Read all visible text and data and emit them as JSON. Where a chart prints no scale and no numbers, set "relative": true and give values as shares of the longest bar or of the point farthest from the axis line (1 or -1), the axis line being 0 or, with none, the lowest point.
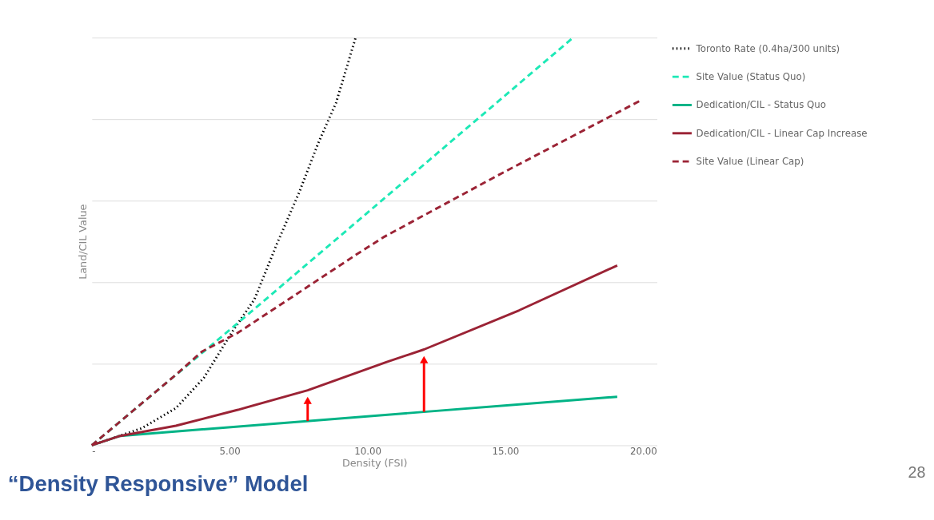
{
  "chart_data": {
    "type": "line",
    "title": "“Density Responsive” Model",
    "xlabel": "Density (FSI)",
    "ylabel": "Land/CIL Value",
    "relative": true,
    "xlim": [
      0,
      20.5
    ],
    "xticks": [
      {
        "value": 0,
        "label": "-"
      },
      {
        "value": 5,
        "label": "5.00"
      },
      {
        "value": 10,
        "label": "10.00"
      },
      {
        "value": 15,
        "label": "15.00"
      },
      {
        "value": 20,
        "label": "20.00"
      }
    ],
    "grid": "y",
    "legend": "right",
    "annotations": [
      "28"
    ],
    "series": [
      {
        "name": "Toronto Rate (0.4ha/300 units)",
        "color": "#000000",
        "line_style": "dotted",
        "x": [
          0,
          1.82,
          3.05,
          4.07,
          5.07,
          5.9,
          6.72,
          7.52,
          8.23,
          8.86,
          9.57
        ],
        "values": [
          0,
          0.042,
          0.091,
          0.166,
          0.276,
          0.358,
          0.495,
          0.62,
          0.744,
          0.84,
          1
        ]
      },
      {
        "name": "Site Value (Status Quo)",
        "color": "#1de9b6",
        "line_style": "dashed",
        "x": [
          0,
          5.3,
          17.46
        ],
        "values": [
          0,
          0.3,
          1
        ]
      },
      {
        "name": "Dedication/CIL - Status Quo",
        "color": "#00b386",
        "line_style": "solid",
        "x": [
          0,
          1.03,
          12.05,
          19.06
        ],
        "values": [
          0,
          0.023,
          0.082,
          0.119
        ]
      },
      {
        "name": "Dedication/CIL - Linear Cap Increase",
        "color": "#9b2335",
        "line_style": "solid",
        "x": [
          0,
          1.03,
          3.05,
          5.3,
          7.83,
          10.68,
          12.05,
          15.5,
          19.06
        ],
        "values": [
          0,
          0.023,
          0.048,
          0.087,
          0.135,
          0.204,
          0.235,
          0.331,
          0.441
        ]
      },
      {
        "name": "Site Value (Linear Cap)",
        "color": "#9b2335",
        "line_style": "dashed",
        "x": [
          0,
          3.05,
          4.0,
          5.3,
          9.6,
          10.57,
          14.7,
          19.97
        ],
        "values": [
          0,
          0.173,
          0.23,
          0.276,
          0.468,
          0.51,
          0.661,
          0.848
        ]
      }
    ]
  }
}
